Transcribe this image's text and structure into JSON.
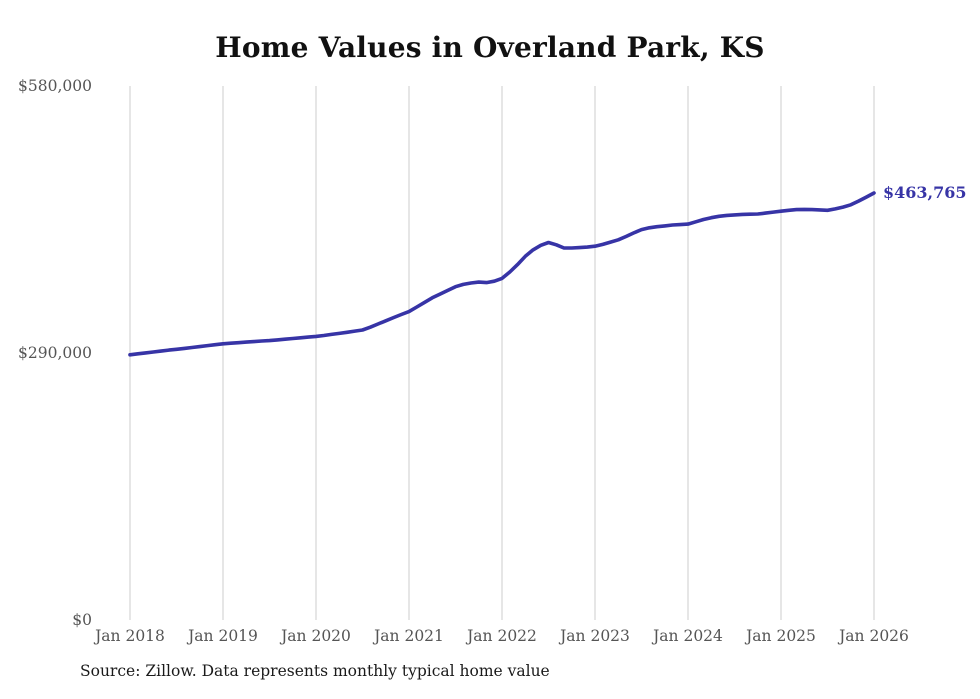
{
  "title": "Home Values in Overland Park, KS",
  "source_note": "Source: Zillow. Data represents monthly typical home value",
  "colors": {
    "background": "#ffffff",
    "line": "#3734a6",
    "grid": "#cccccc",
    "tick": "#555555",
    "title": "#111111",
    "note": "#1a1a1a"
  },
  "chart_data": {
    "type": "line",
    "title": "Home Values in Overland Park, KS",
    "xlabel": "",
    "ylabel": "",
    "ylim": [
      0,
      580000
    ],
    "grid": "vertical",
    "legend": "none",
    "series_name": "Monthly typical home value",
    "end_label": "$463,765",
    "end_value": 463765,
    "x_tick_labels": [
      "Jan 2018",
      "Jan 2019",
      "Jan 2020",
      "Jan 2021",
      "Jan 2022",
      "Jan 2023",
      "Jan 2024",
      "Jan 2025",
      "Jan 2026"
    ],
    "y_ticks": [
      {
        "value": 0,
        "label": "$0"
      },
      {
        "value": 290000,
        "label": "$290,000"
      },
      {
        "value": 580000,
        "label": "$580,000"
      }
    ],
    "values_by_year": {
      "2018": [
        288000,
        289100,
        290100,
        291100,
        292100,
        293100,
        294000,
        295000,
        296000,
        297000,
        298000,
        299000
      ],
      "2019": [
        300000,
        300600,
        301200,
        301800,
        302400,
        303000,
        303500,
        304200,
        305000,
        305800,
        306500,
        307300
      ],
      "2020": [
        308000,
        309000,
        310200,
        311300,
        312500,
        313800,
        315000,
        318000,
        321500,
        325000,
        328500,
        331800
      ],
      "2021": [
        335000,
        340000,
        345000,
        350000,
        354000,
        358000,
        362000,
        364500,
        366000,
        367000,
        366500,
        368000
      ],
      "2022": [
        371000,
        378000,
        386000,
        395000,
        402000,
        407000,
        410000,
        407500,
        404000,
        404000,
        404500,
        405000
      ],
      "2023": [
        406000,
        408000,
        410500,
        413000,
        416500,
        420500,
        424000,
        426000,
        427200,
        428000,
        429000,
        429500
      ],
      "2024": [
        430000,
        432500,
        435000,
        437000,
        438500,
        439500,
        440000,
        440500,
        440800,
        441000,
        442000,
        443000
      ],
      "2025": [
        444000,
        445000,
        445800,
        446000,
        445800,
        445400,
        445000,
        446500,
        448500,
        451000,
        455000,
        459300
      ],
      "2026": [
        463765
      ]
    }
  }
}
